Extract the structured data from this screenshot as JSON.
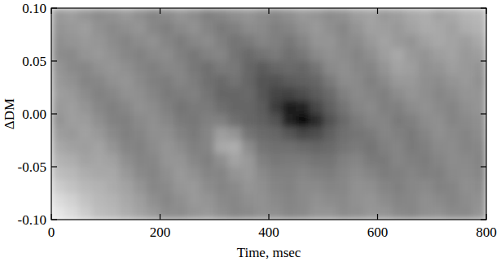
{
  "chart_data": {
    "type": "heatmap",
    "xlabel": "Time, msec",
    "ylabel": "ΔDM",
    "xlim": [
      0,
      800
    ],
    "ylim": [
      -0.1,
      0.1
    ],
    "xticks": [
      0,
      200,
      400,
      600,
      800
    ],
    "yticks": [
      {
        "value": -0.1,
        "label": "-0.10"
      },
      {
        "value": -0.05,
        "label": "-0.05"
      },
      {
        "value": 0,
        "label": "0.00"
      },
      {
        "value": 0.05,
        "label": "0.05"
      },
      {
        "value": 0.1,
        "label": "0.10"
      }
    ],
    "color": "gray",
    "cells": [
      [
        0.6,
        0.62,
        0.58,
        0.55,
        0.57,
        0.6,
        0.56,
        0.52,
        0.54,
        0.58,
        0.55,
        0.5,
        0.52,
        0.56,
        0.58,
        0.55,
        0.53,
        0.56,
        0.6,
        0.58,
        0.55,
        0.57,
        0.62,
        0.64,
        0.6,
        0.62,
        0.66,
        0.68,
        0.64,
        0.66,
        0.7,
        0.72
      ],
      [
        0.58,
        0.6,
        0.62,
        0.57,
        0.54,
        0.56,
        0.58,
        0.53,
        0.5,
        0.54,
        0.57,
        0.52,
        0.48,
        0.5,
        0.55,
        0.54,
        0.5,
        0.52,
        0.57,
        0.6,
        0.56,
        0.53,
        0.58,
        0.63,
        0.62,
        0.6,
        0.64,
        0.67,
        0.66,
        0.63,
        0.68,
        0.7
      ],
      [
        0.56,
        0.58,
        0.6,
        0.59,
        0.55,
        0.52,
        0.55,
        0.57,
        0.52,
        0.49,
        0.53,
        0.55,
        0.5,
        0.46,
        0.48,
        0.52,
        0.5,
        0.47,
        0.52,
        0.58,
        0.58,
        0.54,
        0.55,
        0.6,
        0.64,
        0.6,
        0.58,
        0.63,
        0.66,
        0.64,
        0.62,
        0.66
      ],
      [
        0.55,
        0.54,
        0.58,
        0.6,
        0.57,
        0.53,
        0.51,
        0.54,
        0.55,
        0.5,
        0.47,
        0.51,
        0.52,
        0.46,
        0.42,
        0.45,
        0.48,
        0.44,
        0.47,
        0.54,
        0.57,
        0.55,
        0.52,
        0.56,
        0.62,
        0.66,
        0.6,
        0.58,
        0.62,
        0.64,
        0.6,
        0.62
      ],
      [
        0.58,
        0.54,
        0.53,
        0.57,
        0.59,
        0.56,
        0.52,
        0.5,
        0.53,
        0.52,
        0.47,
        0.44,
        0.48,
        0.47,
        0.4,
        0.36,
        0.4,
        0.42,
        0.4,
        0.46,
        0.54,
        0.56,
        0.53,
        0.52,
        0.58,
        0.64,
        0.62,
        0.57,
        0.58,
        0.62,
        0.6,
        0.58
      ],
      [
        0.6,
        0.57,
        0.52,
        0.53,
        0.57,
        0.58,
        0.54,
        0.5,
        0.49,
        0.52,
        0.49,
        0.44,
        0.42,
        0.45,
        0.4,
        0.33,
        0.32,
        0.36,
        0.38,
        0.4,
        0.48,
        0.55,
        0.54,
        0.5,
        0.54,
        0.6,
        0.6,
        0.56,
        0.55,
        0.58,
        0.6,
        0.57
      ],
      [
        0.62,
        0.6,
        0.55,
        0.51,
        0.53,
        0.57,
        0.56,
        0.52,
        0.48,
        0.49,
        0.5,
        0.46,
        0.4,
        0.4,
        0.41,
        0.34,
        0.27,
        0.26,
        0.3,
        0.36,
        0.42,
        0.5,
        0.54,
        0.52,
        0.5,
        0.55,
        0.58,
        0.56,
        0.53,
        0.55,
        0.58,
        0.58
      ],
      [
        0.6,
        0.62,
        0.58,
        0.53,
        0.5,
        0.53,
        0.57,
        0.55,
        0.5,
        0.46,
        0.48,
        0.48,
        0.43,
        0.4,
        0.4,
        0.36,
        0.24,
        0.12,
        0.14,
        0.28,
        0.38,
        0.46,
        0.52,
        0.54,
        0.5,
        0.5,
        0.55,
        0.57,
        0.54,
        0.52,
        0.56,
        0.58
      ],
      [
        0.58,
        0.62,
        0.61,
        0.56,
        0.51,
        0.5,
        0.54,
        0.56,
        0.53,
        0.48,
        0.47,
        0.5,
        0.5,
        0.44,
        0.4,
        0.38,
        0.32,
        0.14,
        0.06,
        0.16,
        0.32,
        0.42,
        0.48,
        0.52,
        0.52,
        0.48,
        0.5,
        0.55,
        0.56,
        0.52,
        0.54,
        0.56
      ],
      [
        0.62,
        0.6,
        0.63,
        0.6,
        0.54,
        0.5,
        0.52,
        0.56,
        0.56,
        0.51,
        0.48,
        0.52,
        0.62,
        0.58,
        0.46,
        0.42,
        0.4,
        0.34,
        0.28,
        0.3,
        0.38,
        0.44,
        0.46,
        0.48,
        0.52,
        0.5,
        0.48,
        0.52,
        0.56,
        0.54,
        0.52,
        0.55
      ],
      [
        0.66,
        0.63,
        0.62,
        0.64,
        0.58,
        0.52,
        0.51,
        0.55,
        0.58,
        0.55,
        0.5,
        0.52,
        0.66,
        0.68,
        0.55,
        0.46,
        0.44,
        0.44,
        0.42,
        0.4,
        0.42,
        0.46,
        0.48,
        0.46,
        0.5,
        0.52,
        0.48,
        0.5,
        0.54,
        0.55,
        0.52,
        0.53
      ],
      [
        0.7,
        0.68,
        0.64,
        0.65,
        0.63,
        0.56,
        0.52,
        0.53,
        0.58,
        0.58,
        0.53,
        0.5,
        0.56,
        0.64,
        0.6,
        0.5,
        0.47,
        0.48,
        0.48,
        0.46,
        0.46,
        0.5,
        0.52,
        0.48,
        0.48,
        0.52,
        0.5,
        0.49,
        0.52,
        0.55,
        0.54,
        0.52
      ],
      [
        0.74,
        0.72,
        0.68,
        0.66,
        0.66,
        0.6,
        0.54,
        0.52,
        0.56,
        0.6,
        0.57,
        0.52,
        0.52,
        0.58,
        0.6,
        0.54,
        0.5,
        0.5,
        0.52,
        0.5,
        0.49,
        0.52,
        0.55,
        0.52,
        0.49,
        0.5,
        0.52,
        0.5,
        0.5,
        0.54,
        0.55,
        0.53
      ],
      [
        0.8,
        0.76,
        0.72,
        0.7,
        0.67,
        0.64,
        0.58,
        0.53,
        0.54,
        0.59,
        0.6,
        0.55,
        0.52,
        0.54,
        0.58,
        0.56,
        0.52,
        0.51,
        0.54,
        0.54,
        0.52,
        0.53,
        0.57,
        0.56,
        0.52,
        0.5,
        0.53,
        0.54,
        0.51,
        0.52,
        0.56,
        0.55
      ],
      [
        0.86,
        0.82,
        0.76,
        0.72,
        0.7,
        0.66,
        0.62,
        0.56,
        0.53,
        0.56,
        0.6,
        0.58,
        0.54,
        0.53,
        0.56,
        0.57,
        0.54,
        0.52,
        0.54,
        0.57,
        0.55,
        0.54,
        0.57,
        0.58,
        0.55,
        0.52,
        0.53,
        0.56,
        0.54,
        0.52,
        0.55,
        0.57
      ],
      [
        0.9,
        0.86,
        0.8,
        0.74,
        0.72,
        0.68,
        0.64,
        0.6,
        0.55,
        0.55,
        0.58,
        0.6,
        0.56,
        0.53,
        0.54,
        0.57,
        0.56,
        0.53,
        0.54,
        0.58,
        0.58,
        0.55,
        0.56,
        0.59,
        0.58,
        0.54,
        0.53,
        0.56,
        0.57,
        0.54,
        0.54,
        0.58
      ]
    ]
  }
}
